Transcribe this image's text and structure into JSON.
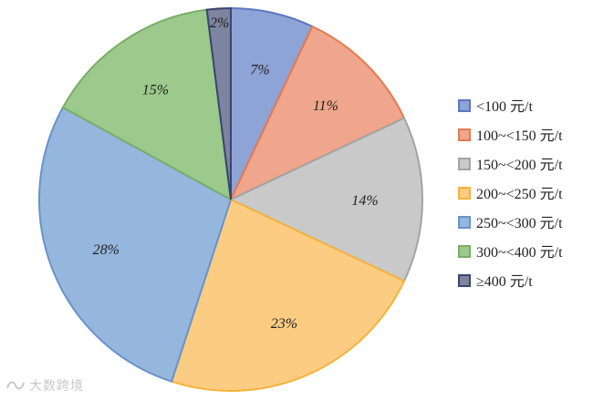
{
  "chart_data": {
    "type": "pie",
    "title": "",
    "slices": [
      {
        "label": "<100 元/t",
        "value": 7,
        "display": "7%",
        "color": "#8ea3d6",
        "stroke": "#5a78c0"
      },
      {
        "label": "100~<150 元/t",
        "value": 11,
        "display": "11%",
        "color": "#efa68c",
        "stroke": "#e57a4f"
      },
      {
        "label": "150~<200 元/t",
        "value": 14,
        "display": "14%",
        "color": "#c9c9c9",
        "stroke": "#a3a3a3"
      },
      {
        "label": "200~<250 元/t",
        "value": 23,
        "display": "23%",
        "color": "#fbcc82",
        "stroke": "#f5b33b"
      },
      {
        "label": "250~<300 元/t",
        "value": 28,
        "display": "28%",
        "color": "#95b6dd",
        "stroke": "#6a93c8"
      },
      {
        "label": "300~<400 元/t",
        "value": 15,
        "display": "15%",
        "color": "#9cc98c",
        "stroke": "#79ae67"
      },
      {
        "label": "≥400 元/t",
        "value": 2,
        "display": "2%",
        "color": "#7d849f",
        "stroke": "#3a4572"
      }
    ],
    "legend_position": "right"
  },
  "watermark": {
    "text": "大数跨境"
  }
}
